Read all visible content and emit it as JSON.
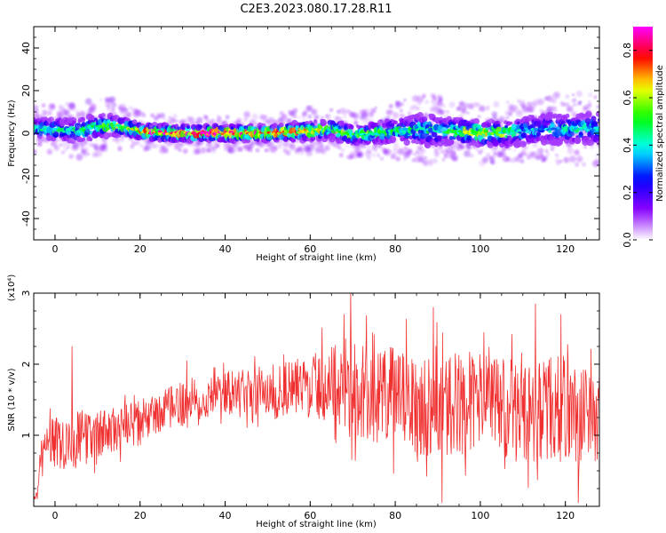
{
  "figure": {
    "title": "C2E3.2023.080.17.28.R11"
  },
  "chart_data": [
    {
      "type": "heatmap",
      "xlabel": "Height of straight line (km)",
      "ylabel": "Frequency (Hz)",
      "xlim": [
        -5,
        128
      ],
      "ylim": [
        -50,
        50
      ],
      "xticks": [
        0,
        20,
        40,
        60,
        80,
        100,
        120
      ],
      "yticks": [
        -40,
        -20,
        0,
        20,
        40
      ],
      "colorbar": {
        "label": "Normalized spectral amplitude",
        "range": [
          0,
          0.9
        ],
        "ticks": [
          0.0,
          0.2,
          0.4,
          0.6,
          0.8
        ],
        "colormap": [
          "#ffffff",
          "#8b00ff",
          "#0000ff",
          "#00ffff",
          "#00ff00",
          "#ffff00",
          "#ff0000",
          "#ff00ff"
        ]
      },
      "band": {
        "center_hz": [
          [
            -5,
            2
          ],
          [
            0,
            2
          ],
          [
            5,
            1
          ],
          [
            10,
            3
          ],
          [
            13,
            4
          ],
          [
            18,
            2
          ],
          [
            22,
            0.5
          ],
          [
            30,
            0
          ],
          [
            40,
            0
          ],
          [
            50,
            0
          ],
          [
            60,
            1
          ],
          [
            65,
            2
          ],
          [
            70,
            -1
          ],
          [
            75,
            0
          ],
          [
            80,
            1
          ],
          [
            85,
            2
          ],
          [
            90,
            1
          ],
          [
            95,
            1
          ],
          [
            100,
            0
          ],
          [
            105,
            0
          ],
          [
            110,
            1
          ],
          [
            115,
            2
          ],
          [
            120,
            2
          ],
          [
            128,
            2
          ]
        ],
        "halfwidth_hz": [
          [
            -5,
            5
          ],
          [
            10,
            6
          ],
          [
            20,
            4
          ],
          [
            30,
            4
          ],
          [
            50,
            4
          ],
          [
            60,
            5
          ],
          [
            70,
            5
          ],
          [
            80,
            6
          ],
          [
            88,
            8
          ],
          [
            95,
            6
          ],
          [
            110,
            7
          ],
          [
            128,
            8
          ]
        ],
        "peak_amplitude": [
          [
            -5,
            0.45
          ],
          [
            10,
            0.5
          ],
          [
            20,
            0.7
          ],
          [
            25,
            0.9
          ],
          [
            40,
            0.9
          ],
          [
            55,
            0.75
          ],
          [
            70,
            0.55
          ],
          [
            80,
            0.5
          ],
          [
            90,
            0.45
          ],
          [
            100,
            0.7
          ],
          [
            110,
            0.4
          ],
          [
            128,
            0.45
          ]
        ]
      }
    },
    {
      "type": "line",
      "xlabel": "Height of straight line (km)",
      "ylabel": "SNR (10 * v/v)",
      "y_multiplier": "(x10⁴)",
      "xlim": [
        -5,
        128
      ],
      "ylim": [
        0,
        3
      ],
      "xticks": [
        0,
        20,
        40,
        60,
        80,
        100,
        120
      ],
      "yticks": [
        1,
        2,
        3
      ],
      "color": "#f03030",
      "envelope": {
        "x": [
          -5,
          -4,
          -3,
          -2,
          0,
          5,
          10,
          20,
          30,
          40,
          50,
          60,
          68,
          70,
          80,
          90,
          100,
          110,
          120,
          128
        ],
        "mean": [
          0.15,
          0.2,
          0.8,
          1.0,
          0.9,
          0.95,
          1.0,
          1.2,
          1.45,
          1.6,
          1.6,
          1.7,
          1.75,
          1.6,
          1.55,
          1.4,
          1.5,
          1.3,
          1.4,
          1.25
        ],
        "spread": [
          0.05,
          0.1,
          0.3,
          0.35,
          0.4,
          0.4,
          0.35,
          0.3,
          0.3,
          0.3,
          0.35,
          0.45,
          0.6,
          0.7,
          0.7,
          0.75,
          0.7,
          0.7,
          0.75,
          0.7
        ]
      },
      "peaks": [
        [
          4,
          2.25
        ],
        [
          31,
          2.05
        ],
        [
          68,
          2.7
        ],
        [
          69.5,
          3.0
        ],
        [
          89,
          2.8
        ],
        [
          91,
          0.05
        ],
        [
          113,
          2.85
        ],
        [
          119,
          2.7
        ],
        [
          123,
          0.05
        ]
      ]
    }
  ]
}
